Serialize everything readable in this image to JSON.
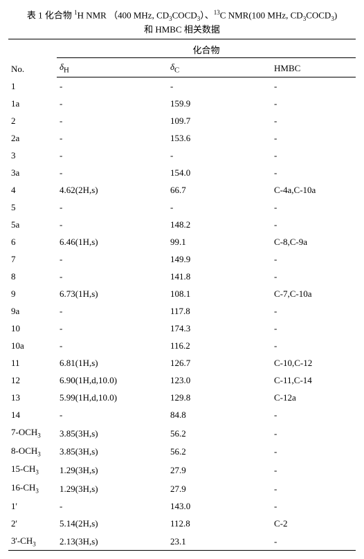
{
  "title_html": "表 1 化合物 <sup>1</sup>H NMR （400 MHz, CD<sub>3</sub>COCD<sub>3</sub>）、<sup>13</sup>C NMR(100 MHz, CD<sub>3</sub>COCD<sub>3</sub>)<br>和 HMBC 相关数据",
  "headers": {
    "no": "No.",
    "compound": "化合物",
    "dH_html": "<span class='ital'>δ</span><sub>H</sub>",
    "dC_html": "<span class='ital'>δ</span><sub>C</sub>",
    "hmbc": "HMBC"
  },
  "rows": [
    {
      "no": "1",
      "dH": "-",
      "dC": "-",
      "hmbc": "-"
    },
    {
      "no": "1a",
      "dH": "-",
      "dC": "159.9",
      "hmbc": "-"
    },
    {
      "no": "2",
      "dH": "-",
      "dC": "109.7",
      "hmbc": "-"
    },
    {
      "no": "2a",
      "dH": "-",
      "dC": "153.6",
      "hmbc": "-"
    },
    {
      "no": "3",
      "dH": "-",
      "dC": "-",
      "hmbc": "-"
    },
    {
      "no": "3a",
      "dH": "-",
      "dC": "154.0",
      "hmbc": "-"
    },
    {
      "no": "4",
      "dH": "4.62(2H,s)",
      "dC": "66.7",
      "hmbc": "C-4a,C-10a"
    },
    {
      "no": "5",
      "dH": "-",
      "dC": "-",
      "hmbc": "-"
    },
    {
      "no": "5a",
      "dH": "-",
      "dC": "148.2",
      "hmbc": "-"
    },
    {
      "no": "6",
      "dH": "6.46(1H,s)",
      "dC": "99.1",
      "hmbc": "C-8,C-9a"
    },
    {
      "no": "7",
      "dH": "-",
      "dC": "149.9",
      "hmbc": "-"
    },
    {
      "no": "8",
      "dH": "-",
      "dC": "141.8",
      "hmbc": "-"
    },
    {
      "no": "9",
      "dH": "6.73(1H,s)",
      "dC": "108.1",
      "hmbc": "C-7,C-10a"
    },
    {
      "no": "9a",
      "dH": "-",
      "dC": "117.8",
      "hmbc": "-"
    },
    {
      "no": "10",
      "dH": "-",
      "dC": "174.3",
      "hmbc": "-"
    },
    {
      "no": "10a",
      "dH": "-",
      "dC": "116.2",
      "hmbc": "-"
    },
    {
      "no": "11",
      "dH": "6.81(1H,s)",
      "dC": "126.7",
      "hmbc": "C-10,C-12"
    },
    {
      "no": "12",
      "dH": "6.90(1H,d,10.0)",
      "dC": "123.0",
      "hmbc": "C-11,C-14"
    },
    {
      "no": "13",
      "dH": "5.99(1H,d,10.0)",
      "dC": "129.8",
      "hmbc": "C-12a"
    },
    {
      "no": "14",
      "dH": "-",
      "dC": "84.8",
      "hmbc": "-"
    },
    {
      "no_html": "7-OCH<sub>3</sub>",
      "dH": "3.85(3H,s)",
      "dC": "56.2",
      "hmbc": "-"
    },
    {
      "no_html": "8-OCH<sub>3</sub>",
      "dH": "3.85(3H,s)",
      "dC": "56.2",
      "hmbc": "-"
    },
    {
      "no_html": "15-CH<sub>3</sub>",
      "dH": "1.29(3H,s)",
      "dC": "27.9",
      "hmbc": "-"
    },
    {
      "no_html": "16-CH<sub>3</sub>",
      "dH": "1.29(3H,s)",
      "dC": "27.9",
      "hmbc": "-"
    },
    {
      "no": "1'",
      "dH": "-",
      "dC": "143.0",
      "hmbc": "-"
    },
    {
      "no": "2'",
      "dH": "5.14(2H,s)",
      "dC": "112.8",
      "hmbc": "C-2"
    },
    {
      "no_html": "3'-CH<sub>3</sub>",
      "dH": "2.13(3H,s)",
      "dC": "23.1",
      "hmbc": "-"
    }
  ]
}
